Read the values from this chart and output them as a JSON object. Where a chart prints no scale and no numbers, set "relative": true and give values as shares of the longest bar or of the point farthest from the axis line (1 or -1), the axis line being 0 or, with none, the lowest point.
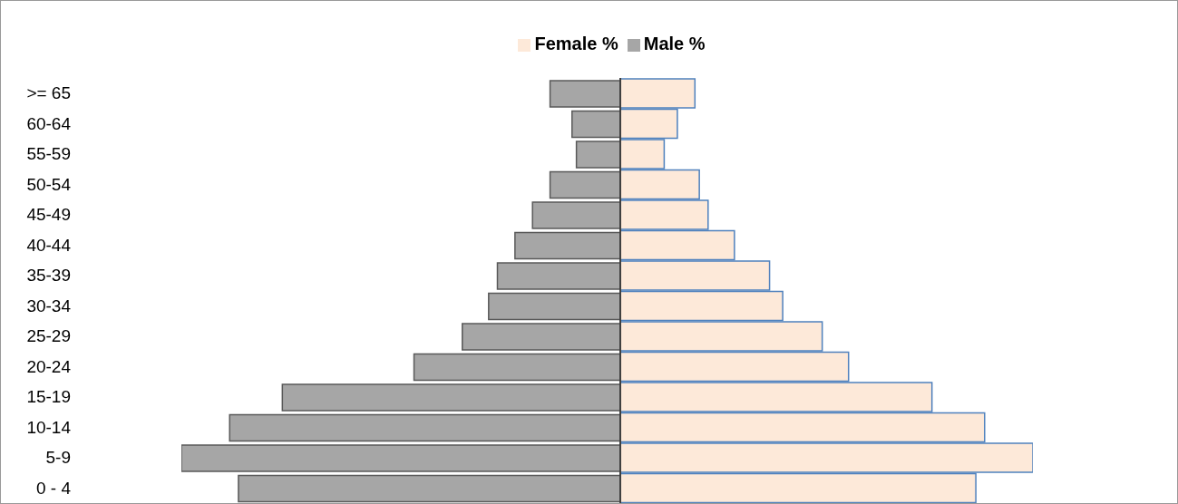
{
  "chart_data": {
    "type": "bar",
    "orientation": "horizontal",
    "relative": true,
    "legend": "top",
    "categories": [
      ">= 65",
      "60-64",
      "55-59",
      "50-54",
      "45-49",
      "40-44",
      "35-39",
      "30-34",
      "25-29",
      "20-24",
      "15-19",
      "10-14",
      "5-9",
      "0 - 4"
    ],
    "series": [
      {
        "name": "Female %",
        "color": "#fde9d9",
        "values": [
          0.17,
          0.13,
          0.1,
          0.18,
          0.2,
          0.26,
          0.34,
          0.37,
          0.46,
          0.52,
          0.71,
          0.83,
          0.94,
          0.81
        ]
      },
      {
        "name": "Male %",
        "color": "#a6a6a6",
        "values": [
          -0.16,
          -0.11,
          -0.1,
          -0.16,
          -0.2,
          -0.24,
          -0.28,
          -0.3,
          -0.36,
          -0.47,
          -0.77,
          -0.89,
          -1,
          -0.87
        ]
      }
    ]
  }
}
